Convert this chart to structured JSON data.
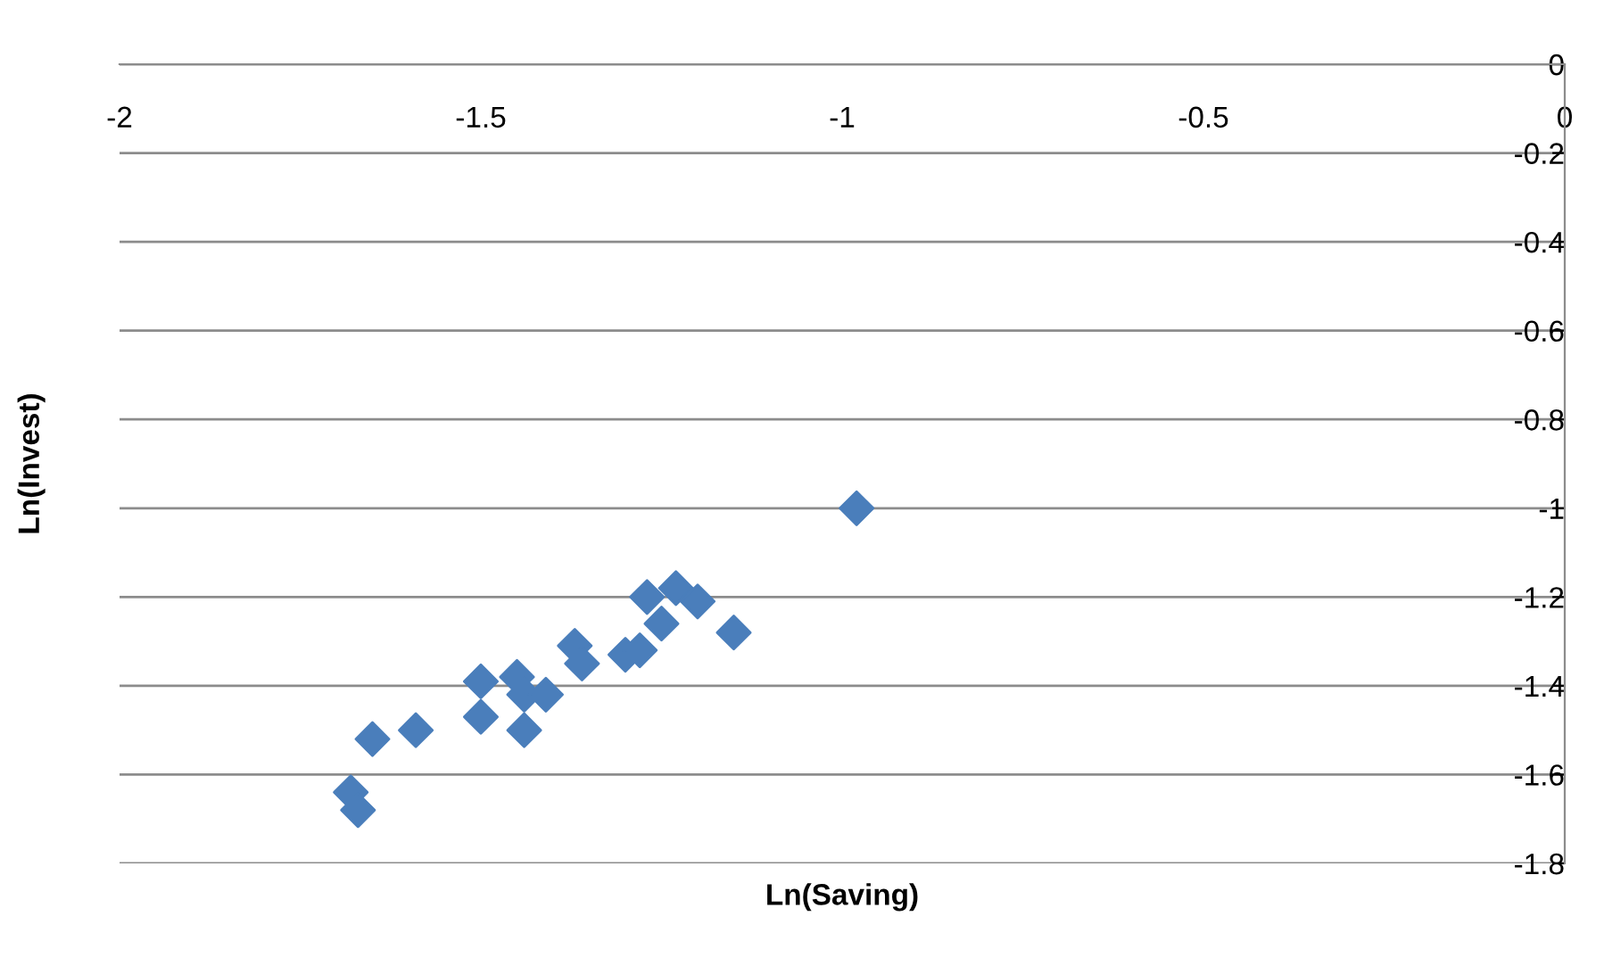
{
  "chart_data": {
    "type": "scatter",
    "xlabel": "Ln(Saving)",
    "ylabel": "Ln(Invest)",
    "x": [
      -1.68,
      -1.67,
      -1.65,
      -1.59,
      -1.5,
      -1.5,
      -1.45,
      -1.44,
      -1.44,
      -1.41,
      -1.37,
      -1.36,
      -1.3,
      -1.28,
      -1.27,
      -1.25,
      -1.23,
      -1.2,
      -1.15,
      -0.98
    ],
    "series": [
      {
        "color": "#4a7ebb",
        "values": [
          -1.64,
          -1.68,
          -1.52,
          -1.5,
          -1.39,
          -1.47,
          -1.38,
          -1.42,
          -1.5,
          -1.42,
          -1.31,
          -1.35,
          -1.33,
          -1.32,
          -1.2,
          -1.26,
          -1.18,
          -1.21,
          -1.28,
          -1.0
        ]
      }
    ],
    "xlim": [
      -2,
      0
    ],
    "ylim": [
      -1.8,
      0
    ],
    "xticks": [
      -2,
      -1.5,
      -1,
      -0.5,
      0
    ],
    "yticks": [
      0,
      -0.2,
      -0.4,
      -0.6,
      -0.8,
      -1,
      -1.2,
      -1.4,
      -1.6,
      -1.8
    ],
    "grid": "y",
    "marker": "diamond",
    "legend": false
  }
}
